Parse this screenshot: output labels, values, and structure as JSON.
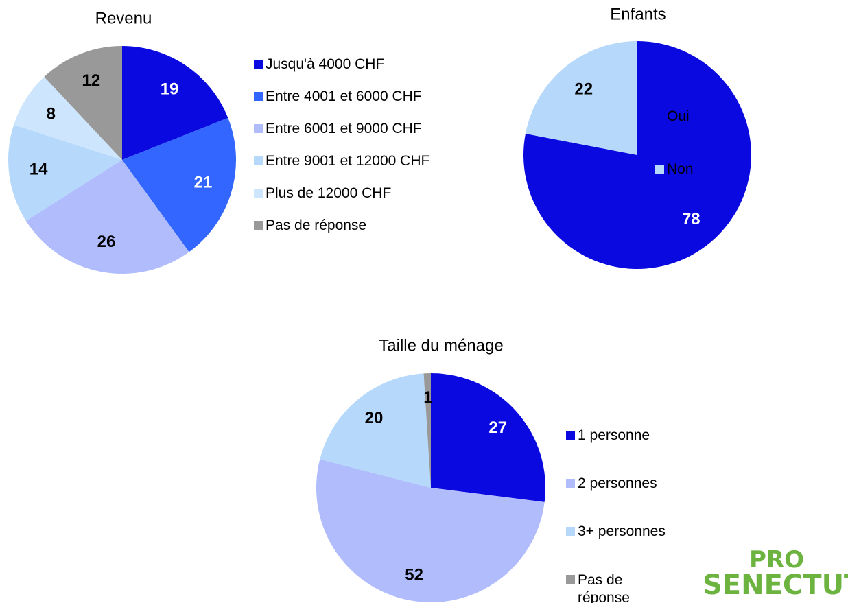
{
  "chart_data": [
    {
      "type": "pie",
      "title": "Revenu",
      "categories": [
        "Jusqu'à 4000 CHF",
        "Entre 4001 et 6000 CHF",
        "Entre 6001 et 9000 CHF",
        "Entre 9001 et 12000 CHF",
        "Plus de 12000 CHF",
        "Pas de réponse"
      ],
      "values": [
        19,
        21,
        26,
        14,
        8,
        12
      ],
      "colors": [
        "#0a0ae0",
        "#3366ff",
        "#b0bcfc",
        "#b5d8fb",
        "#cde6fd",
        "#999999"
      ]
    },
    {
      "type": "pie",
      "title": "Enfants",
      "categories": [
        "Oui",
        "Non"
      ],
      "values": [
        78,
        22
      ],
      "colors": [
        "#0a0ae0",
        "#b5d8fb"
      ]
    },
    {
      "type": "pie",
      "title": "Taille du ménage",
      "categories": [
        "1 personne",
        "2 personnes",
        "3+ personnes",
        "Pas de réponse"
      ],
      "values": [
        27,
        52,
        20,
        1
      ],
      "colors": [
        "#0a0ae0",
        "#b0bcfc",
        "#b5d8fb",
        "#999999"
      ]
    }
  ],
  "logo": {
    "line1": "PRO",
    "line2": "SENECTUT"
  }
}
